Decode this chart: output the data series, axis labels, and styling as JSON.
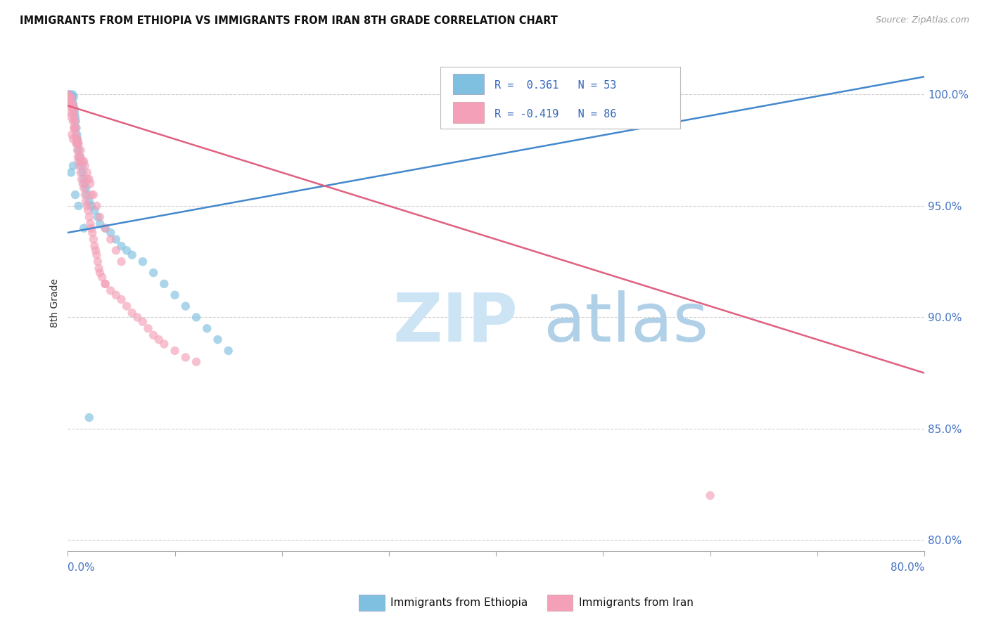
{
  "title": "IMMIGRANTS FROM ETHIOPIA VS IMMIGRANTS FROM IRAN 8TH GRADE CORRELATION CHART",
  "source": "Source: ZipAtlas.com",
  "ylabel": "8th Grade",
  "yticks": [
    80.0,
    85.0,
    90.0,
    95.0,
    100.0
  ],
  "ytick_labels": [
    "80.0%",
    "85.0%",
    "90.0%",
    "95.0%",
    "100.0%"
  ],
  "xmin": 0.0,
  "xmax": 80.0,
  "ymin": 79.5,
  "ymax": 101.8,
  "legend_ethiopia": "Immigrants from Ethiopia",
  "legend_iran": "Immigrants from Iran",
  "R_ethiopia": 0.361,
  "N_ethiopia": 53,
  "R_iran": -0.419,
  "N_iran": 86,
  "color_ethiopia": "#7fbfdf",
  "color_iran": "#f4a0b8",
  "color_blue_line": "#4488cc",
  "color_pink_line": "#e06080",
  "watermark_zip_color": "#cce4f4",
  "watermark_atlas_color": "#b0d0e8",
  "eth_blue_line_x0": 0.0,
  "eth_blue_line_y0": 93.8,
  "eth_blue_line_x1": 80.0,
  "eth_blue_line_y1": 100.8,
  "iran_pink_line_x0": 0.0,
  "iran_pink_line_y0": 99.5,
  "iran_pink_line_x1": 80.0,
  "iran_pink_line_y1": 87.5,
  "ethiopia_x": [
    0.1,
    0.15,
    0.2,
    0.25,
    0.3,
    0.35,
    0.4,
    0.45,
    0.5,
    0.55,
    0.6,
    0.65,
    0.7,
    0.75,
    0.8,
    0.85,
    0.9,
    0.95,
    1.0,
    1.1,
    1.2,
    1.3,
    1.4,
    1.5,
    1.6,
    1.7,
    1.8,
    2.0,
    2.2,
    2.5,
    2.8,
    3.0,
    3.5,
    4.0,
    4.5,
    5.0,
    5.5,
    6.0,
    7.0,
    8.0,
    9.0,
    10.0,
    11.0,
    12.0,
    13.0,
    14.0,
    15.0,
    0.3,
    0.5,
    0.7,
    1.0,
    1.5,
    2.0
  ],
  "ethiopia_y": [
    99.8,
    100.0,
    100.0,
    99.9,
    99.7,
    99.5,
    99.8,
    100.0,
    99.6,
    99.9,
    99.4,
    99.2,
    99.0,
    98.8,
    98.5,
    98.2,
    98.0,
    97.8,
    97.5,
    97.2,
    97.0,
    96.8,
    96.5,
    96.2,
    96.0,
    95.8,
    95.5,
    95.2,
    95.0,
    94.8,
    94.5,
    94.2,
    94.0,
    93.8,
    93.5,
    93.2,
    93.0,
    92.8,
    92.5,
    92.0,
    91.5,
    91.0,
    90.5,
    90.0,
    89.5,
    89.0,
    88.5,
    96.5,
    96.8,
    95.5,
    95.0,
    94.0,
    85.5
  ],
  "iran_x": [
    0.05,
    0.1,
    0.15,
    0.2,
    0.25,
    0.3,
    0.35,
    0.4,
    0.45,
    0.5,
    0.55,
    0.6,
    0.65,
    0.7,
    0.75,
    0.8,
    0.85,
    0.9,
    0.95,
    1.0,
    1.1,
    1.2,
    1.3,
    1.4,
    1.5,
    1.6,
    1.7,
    1.8,
    1.9,
    2.0,
    2.1,
    2.2,
    2.3,
    2.4,
    2.5,
    2.6,
    2.7,
    2.8,
    2.9,
    3.0,
    3.2,
    3.5,
    4.0,
    4.5,
    5.0,
    5.5,
    6.0,
    6.5,
    7.0,
    7.5,
    8.0,
    8.5,
    9.0,
    10.0,
    11.0,
    12.0,
    0.3,
    0.6,
    0.9,
    1.2,
    1.5,
    1.8,
    2.1,
    2.4,
    2.7,
    3.0,
    3.5,
    4.0,
    4.5,
    5.0,
    0.4,
    0.8,
    1.2,
    1.6,
    2.0,
    0.5,
    0.5,
    0.5,
    3.5,
    60.0,
    0.2,
    0.6,
    1.0,
    1.4,
    1.8,
    2.2
  ],
  "iran_y": [
    100.0,
    99.9,
    99.8,
    99.7,
    99.9,
    99.8,
    99.5,
    99.6,
    99.4,
    99.2,
    99.3,
    99.0,
    98.8,
    98.5,
    98.2,
    98.0,
    97.8,
    97.5,
    97.2,
    97.0,
    96.8,
    96.5,
    96.2,
    96.0,
    95.8,
    95.5,
    95.2,
    95.0,
    94.8,
    94.5,
    94.2,
    94.0,
    93.8,
    93.5,
    93.2,
    93.0,
    92.8,
    92.5,
    92.2,
    92.0,
    91.8,
    91.5,
    91.2,
    91.0,
    90.8,
    90.5,
    90.2,
    90.0,
    89.8,
    89.5,
    89.2,
    89.0,
    88.8,
    88.5,
    88.2,
    88.0,
    99.0,
    98.5,
    98.0,
    97.5,
    97.0,
    96.5,
    96.0,
    95.5,
    95.0,
    94.5,
    94.0,
    93.5,
    93.0,
    92.5,
    98.2,
    97.8,
    97.2,
    96.8,
    96.2,
    99.5,
    98.8,
    98.0,
    91.5,
    82.0,
    99.2,
    98.5,
    97.8,
    97.0,
    96.2,
    95.5
  ]
}
